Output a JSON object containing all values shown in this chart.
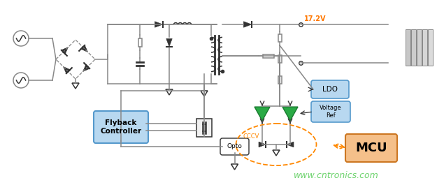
{
  "bg_color": "#ffffff",
  "line_color": "#888888",
  "dark_color": "#333333",
  "green_amp": "#2aaa45",
  "blue_fill": "#b8d8f0",
  "blue_edge": "#5599cc",
  "mcu_fill": "#f5c08a",
  "mcu_edge": "#cc7722",
  "orange": "#ff8800",
  "green_text": "#55cc55",
  "voltage_text": "17.2V",
  "website_text": "www.cntronics.com",
  "ldo_text": "LDO",
  "vref_text": "Voltage\nRef",
  "mcu_text": "MCU",
  "opto_text": "Opto",
  "cccv_text": "CCCV",
  "flyback_text": "Flyback\nController"
}
